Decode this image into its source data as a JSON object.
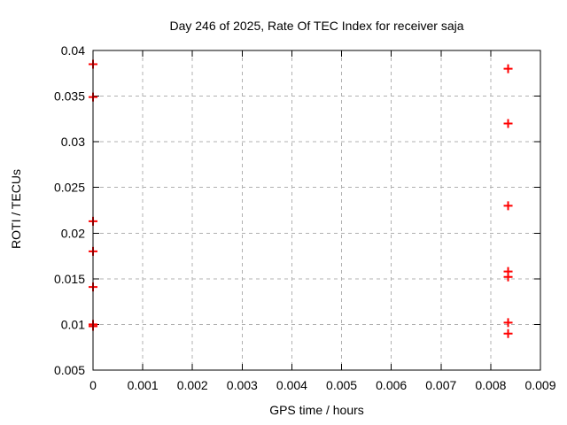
{
  "chart_data": {
    "type": "scatter",
    "title": "Day 246 of 2025, Rate Of TEC Index for receiver saja",
    "xlabel": "GPS time / hours",
    "ylabel": "ROTI / TECUs",
    "xlim": [
      0,
      0.009
    ],
    "ylim": [
      0.005,
      0.04
    ],
    "grid": true,
    "legend": "none",
    "xticks": [
      {
        "v": 0,
        "label": "0"
      },
      {
        "v": 0.001,
        "label": "0.001"
      },
      {
        "v": 0.002,
        "label": "0.002"
      },
      {
        "v": 0.003,
        "label": "0.003"
      },
      {
        "v": 0.004,
        "label": "0.004"
      },
      {
        "v": 0.005,
        "label": "0.005"
      },
      {
        "v": 0.006,
        "label": "0.006"
      },
      {
        "v": 0.007,
        "label": "0.007"
      },
      {
        "v": 0.008,
        "label": "0.008"
      },
      {
        "v": 0.009,
        "label": "0.009"
      }
    ],
    "yticks": [
      {
        "v": 0.005,
        "label": "0.005"
      },
      {
        "v": 0.01,
        "label": "0.01"
      },
      {
        "v": 0.015,
        "label": "0.015"
      },
      {
        "v": 0.02,
        "label": "0.02"
      },
      {
        "v": 0.025,
        "label": "0.025"
      },
      {
        "v": 0.03,
        "label": "0.03"
      },
      {
        "v": 0.035,
        "label": "0.035"
      },
      {
        "v": 0.04,
        "label": "0.04"
      }
    ],
    "series": [
      {
        "name": "ROTI",
        "marker": "plus",
        "color": "#ff0000",
        "points": [
          [
            0,
            0.0385
          ],
          [
            0,
            0.0349
          ],
          [
            0,
            0.0213
          ],
          [
            0,
            0.018
          ],
          [
            0,
            0.0141
          ],
          [
            0,
            0.01
          ],
          [
            0,
            0.0098
          ],
          [
            0.00835,
            0.038
          ],
          [
            0.00835,
            0.032
          ],
          [
            0.00835,
            0.023
          ],
          [
            0.00835,
            0.0158
          ],
          [
            0.00835,
            0.0152
          ],
          [
            0.00835,
            0.0102
          ],
          [
            0.00835,
            0.009
          ]
        ]
      }
    ],
    "colors": {
      "marker": "#ff0000",
      "grid": "#b0b0b0",
      "axis": "#000000",
      "background": "#ffffff"
    }
  }
}
